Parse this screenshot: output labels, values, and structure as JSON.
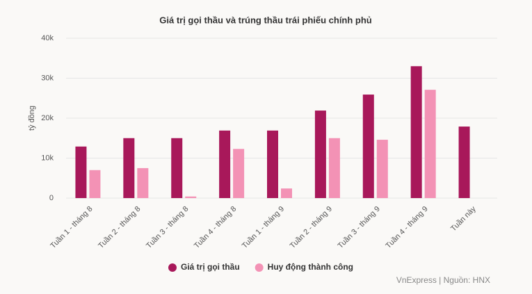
{
  "chart_data": {
    "type": "bar",
    "title": "Giá trị gọi thầu và trúng thầu trái phiếu chính phủ",
    "y_label": "tỷ đồng",
    "source": "VnExpress | Nguồn: HNX",
    "categories": [
      "Tuần 1 - tháng 8",
      "Tuần 2 - tháng 8",
      "Tuần 3 - tháng 8",
      "Tuần 4 - tháng 8",
      "Tuần 1 - tháng 9",
      "Tuần 2 - tháng 9",
      "Tuần 3 - tháng 9",
      "Tuần 4 - tháng 9",
      "Tuần này"
    ],
    "series": [
      {
        "name": "Giá trị gọi thầu",
        "color": "#a8185a",
        "values": [
          12900,
          15000,
          15000,
          16900,
          16900,
          21900,
          25900,
          33000,
          17900
        ]
      },
      {
        "name": "Huy động thành công",
        "color": "#f392b5",
        "values": [
          7000,
          7500,
          400,
          12300,
          2400,
          15000,
          14600,
          27100,
          null
        ]
      }
    ],
    "ylim": [
      0,
      40000
    ],
    "yticks": [
      0,
      {
        "value": 10000,
        "label": "10k"
      },
      {
        "value": 20000,
        "label": "20k"
      },
      {
        "value": 30000,
        "label": "30k"
      },
      {
        "value": 40000,
        "label": "40k"
      }
    ],
    "grid": true,
    "legend": "bottom"
  }
}
